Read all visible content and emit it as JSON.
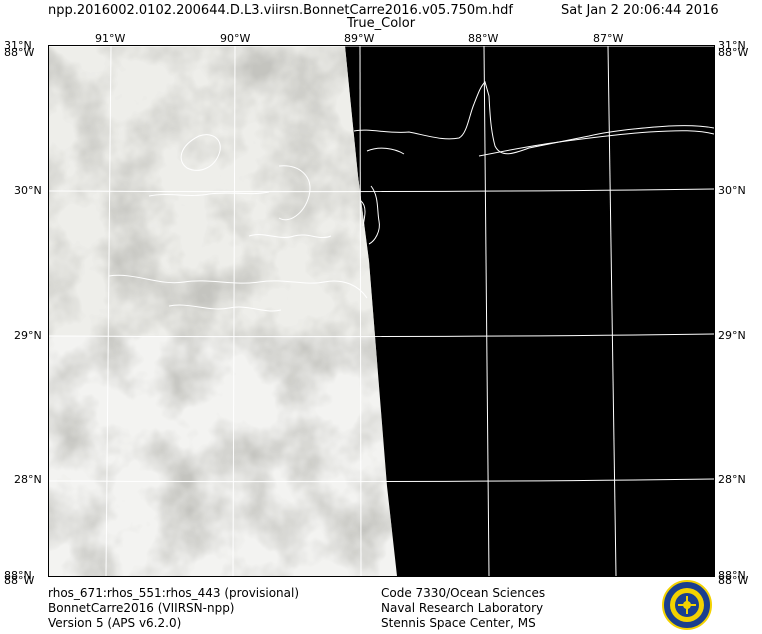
{
  "header": {
    "filename": "npp.2016002.0102.200644.D.L3.viirsn.BonnetCarre2016.v05.750m.hdf",
    "timestamp": "Sat Jan  2 20:06:44 2016",
    "product": "True_Color"
  },
  "map": {
    "region": "Gulf of Mexico — Mississippi Delta / Louisiana–Alabama coast",
    "imagery": "true color composite: cloud cover west of swath edge, no data (black) east",
    "lon_labels_top": [
      "91°W",
      "90°W",
      "89°W",
      "88°W",
      "87°W"
    ],
    "lat_labels_left": [
      "31°N",
      "30°N",
      "29°N",
      "28°N"
    ],
    "lat_labels_right": [
      "31°N",
      "30°N",
      "29°N",
      "28°N"
    ],
    "corner_labels": {
      "top_left_a": "31°N",
      "top_left_b": "88°W",
      "top_right_a": "31°N",
      "top_right_b": "88°W",
      "bottom_left_a": "88°N",
      "bottom_left_b": "88°W",
      "bottom_right_a": "88°N",
      "bottom_right_b": "88°W"
    },
    "colors": {
      "no_data": "#000000",
      "cloud": "#f2f2f0",
      "grid": "#ffffff",
      "coastline": "#ffffff"
    }
  },
  "footer": {
    "left": [
      "rhos_671:rhos_551:rhos_443 (provisional)",
      "BonnetCarre2016 (VIIRSN-npp)",
      "Version 5 (APS v6.2.0)"
    ],
    "right": [
      "Code 7330/Ocean Sciences",
      "Naval Research Laboratory",
      "Stennis Space Center, MS"
    ],
    "logo_icon": "naval-research-laboratory-seal"
  }
}
